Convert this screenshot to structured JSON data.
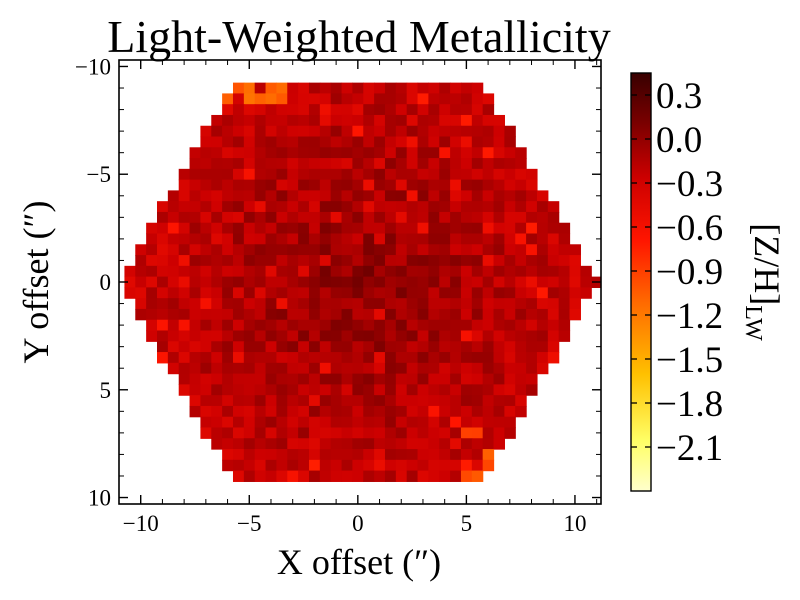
{
  "chart_data": {
    "type": "heatmap",
    "title": "Light-Weighted Metallicity",
    "xlabel": "X offset (″)",
    "ylabel": "Y offset (″)",
    "xlim": [
      -11,
      11.2
    ],
    "ylim": [
      10.3,
      -10.3
    ],
    "x_ticks": [
      -10,
      -5,
      0,
      5,
      10
    ],
    "x_tick_labels": [
      "−10",
      "−5",
      "0",
      "5",
      "10"
    ],
    "y_ticks": [
      -10,
      -5,
      0,
      5,
      10
    ],
    "y_tick_labels": [
      "−10",
      "−5",
      "0",
      "5",
      "10"
    ],
    "footprint": "hexagonal IFU field, corner-to-corner width ~22 arcsec, centered at (0,0)",
    "typical_value": -0.05,
    "value_range_observed": [
      -1.2,
      0.4
    ],
    "colorbar": {
      "label": "[Z/H]",
      "label_subscript": "LW",
      "colormap": "hot_r",
      "vmin": -2.4,
      "vmax": 0.45,
      "ticks": [
        0.3,
        0.0,
        -0.3,
        -0.6,
        -0.9,
        -1.2,
        -1.5,
        -1.8,
        -2.1
      ],
      "tick_labels": [
        "0.3",
        "0.0",
        "−0.3",
        "−0.6",
        "−0.9",
        "−1.2",
        "−1.5",
        "−1.8",
        "−2.1"
      ]
    }
  }
}
